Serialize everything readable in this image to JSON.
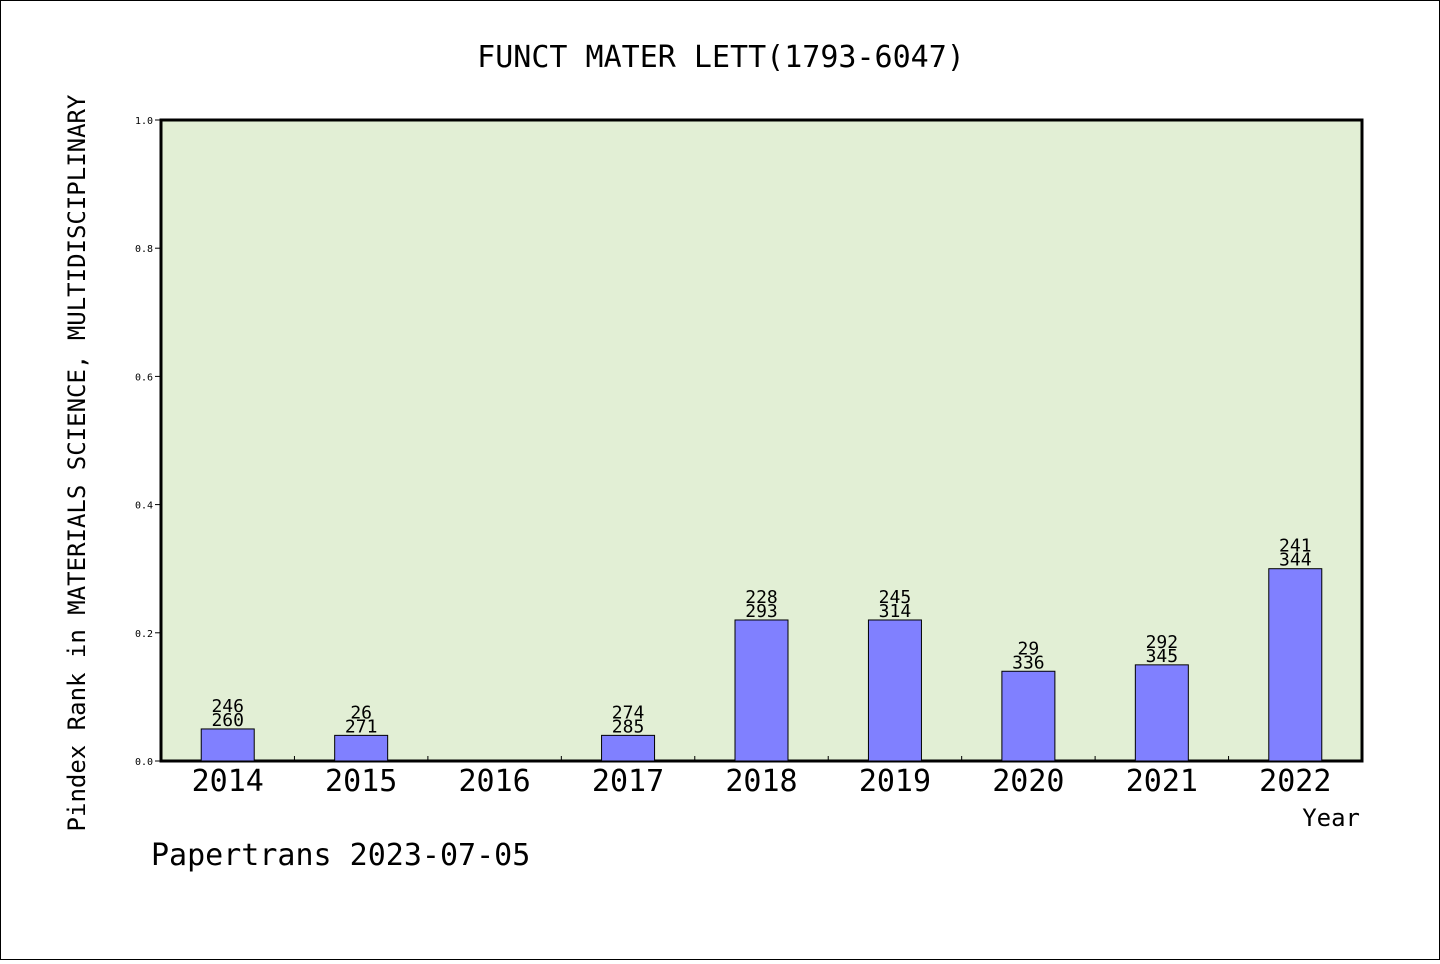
{
  "chart_data": {
    "type": "bar",
    "title": "FUNCT MATER LETT(1793-6047)",
    "xlabel": "Year",
    "ylabel": "Pindex Rank in MATERIALS SCIENCE, MULTIDISCIPLINARY",
    "ylim": [
      0,
      1
    ],
    "yticks": [
      "0.0",
      "0.2",
      "0.4",
      "0.6",
      "0.8",
      "1.0"
    ],
    "categories": [
      "2014",
      "2015",
      "2016",
      "2017",
      "2018",
      "2019",
      "2020",
      "2021",
      "2022"
    ],
    "values": [
      0.05,
      0.04,
      null,
      0.04,
      0.22,
      0.22,
      0.14,
      0.15,
      0.3
    ],
    "labels_top": [
      "246",
      "26",
      "",
      "274",
      "228",
      "245",
      "29",
      "292",
      "241"
    ],
    "labels_bottom": [
      "260",
      "271",
      "",
      "285",
      "293",
      "314",
      "336",
      "345",
      "344"
    ],
    "grid": false,
    "colors": {
      "plot_background": "#e2efd5",
      "bar_fill": "#8080ff",
      "bar_stroke": "#000000"
    }
  },
  "footer": "Papertrans 2023-07-05"
}
